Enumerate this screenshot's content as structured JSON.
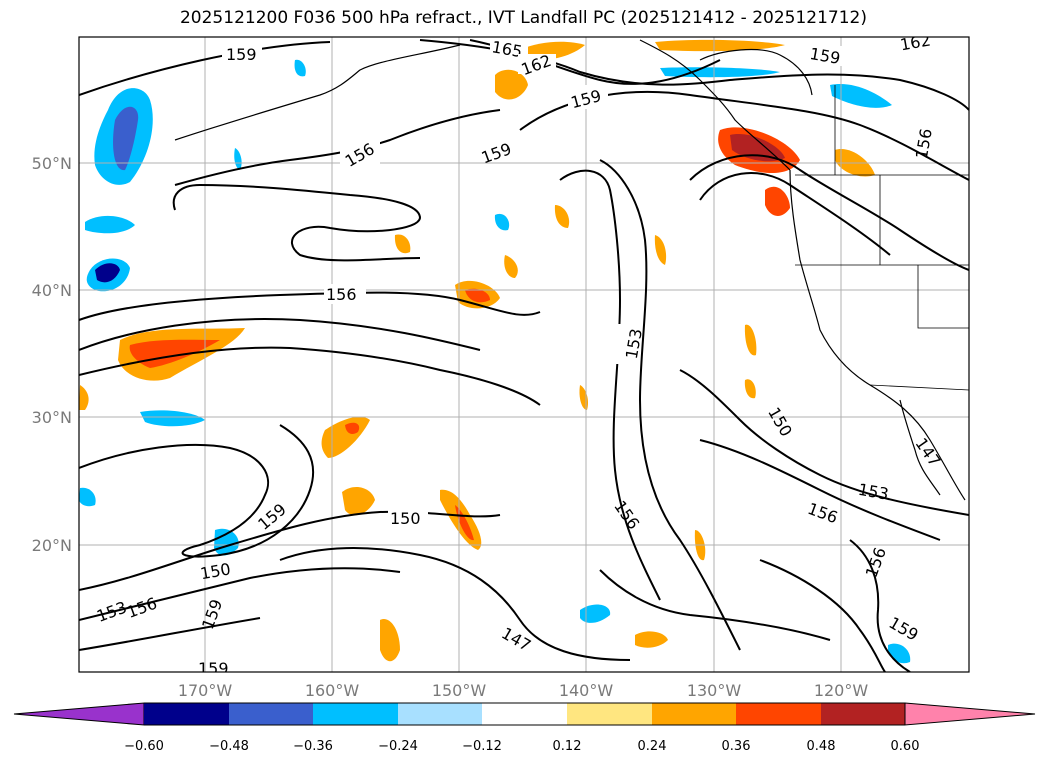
{
  "title": "2025121200 F036 500 hPa refract., IVT Landfall PC (2025121412 - 2025121712)",
  "lat_labels": [
    "50°N",
    "40°N",
    "30°N",
    "20°N"
  ],
  "lon_labels": [
    "170°W",
    "160°W",
    "150°W",
    "140°W",
    "130°W",
    "120°W"
  ],
  "contour_labels": [
    "159",
    "165",
    "162",
    "159",
    "162",
    "156",
    "159",
    "159",
    "156",
    "156",
    "153",
    "150",
    "153",
    "147",
    "156",
    "156",
    "159",
    "150",
    "156",
    "150",
    "153",
    "156",
    "159",
    "147",
    "159",
    "159"
  ],
  "colorbar": {
    "tick_labels": [
      "−0.60",
      "−0.48",
      "−0.36",
      "−0.24",
      "−0.12",
      "0.12",
      "0.24",
      "0.36",
      "0.48",
      "0.60"
    ],
    "colors": [
      "#9932cc",
      "#00008b",
      "#3a5fcd",
      "#00bfff",
      "#a8e0ff",
      "#ffffff",
      "#ffe680",
      "#ffa500",
      "#ff4500",
      "#b22222",
      "#ff82ab"
    ]
  }
}
